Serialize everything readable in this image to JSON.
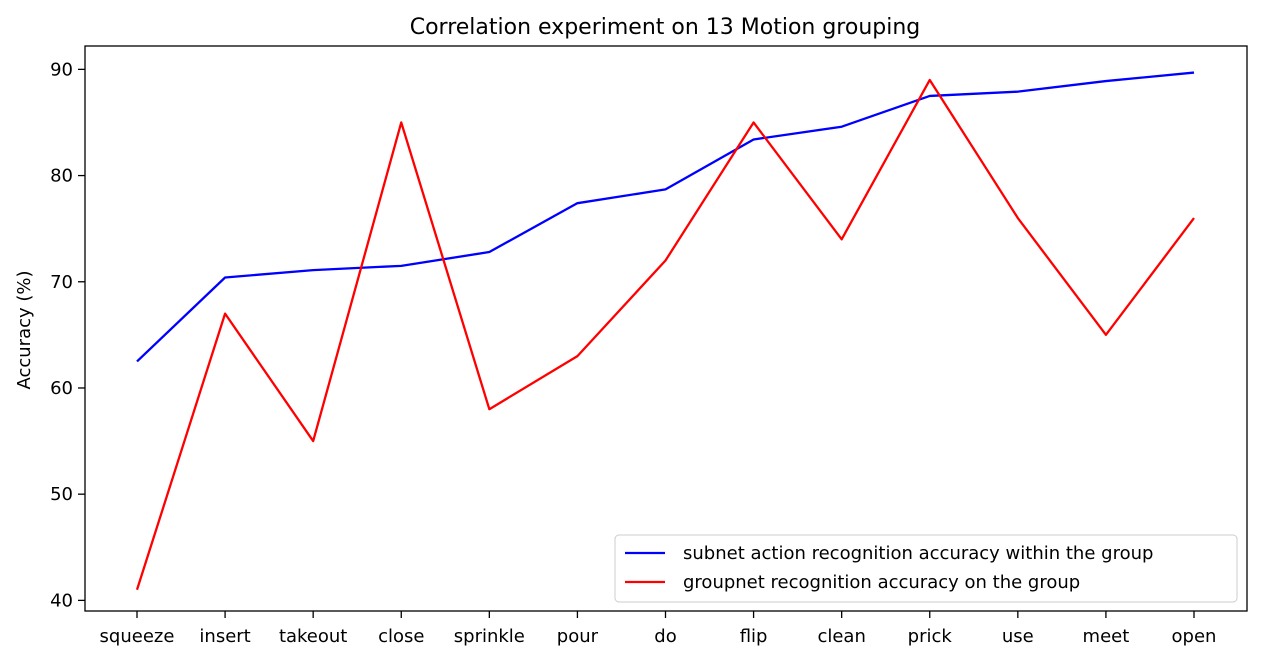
{
  "chart_data": {
    "type": "line",
    "title": "Correlation experiment on 13 Motion grouping",
    "xlabel": "",
    "ylabel": "Accuracy (%)",
    "categories": [
      "squeeze",
      "insert",
      "takeout",
      "close",
      "sprinkle",
      "pour",
      "do",
      "flip",
      "clean",
      "prick",
      "use",
      "meet",
      "open"
    ],
    "ylim": [
      39,
      92.2
    ],
    "yticks": [
      40,
      50,
      60,
      70,
      80,
      90
    ],
    "grid": false,
    "legend_position": "lower-right",
    "series": [
      {
        "name": "subnet action recognition accuracy within the group",
        "color": "#0000ff",
        "values": [
          62.5,
          70.4,
          71.1,
          71.5,
          72.8,
          77.4,
          78.7,
          83.4,
          84.6,
          87.5,
          87.9,
          88.9,
          89.7
        ]
      },
      {
        "name": "groupnet recognition accuracy on the group",
        "color": "#ff0000",
        "values": [
          41,
          67,
          55,
          85,
          58,
          63,
          72,
          85,
          74,
          89,
          76,
          65,
          76
        ]
      }
    ]
  }
}
